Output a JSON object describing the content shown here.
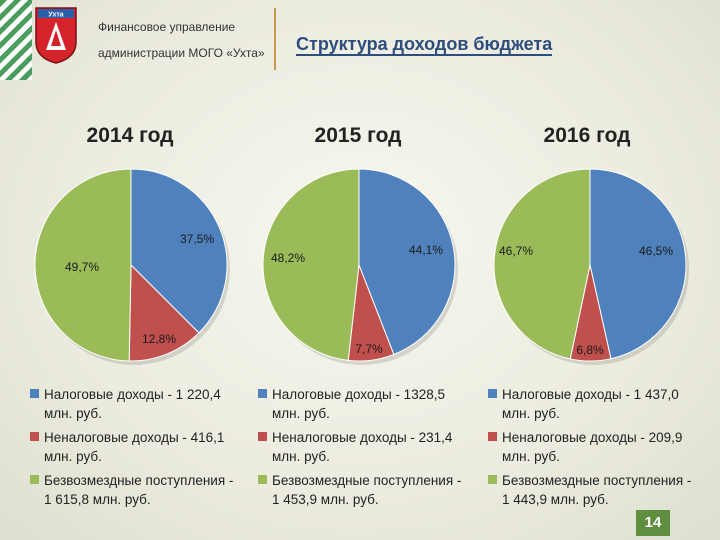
{
  "header": {
    "org_line1": "Финансовое управление",
    "org_line2": "администрации МОГО «Ухта»",
    "emblem_text": "Ухта",
    "title": "Структура доходов бюджета"
  },
  "colors": {
    "tax": "#4f81bd",
    "nontax": "#c0504d",
    "grants": "#9bbb59"
  },
  "chart_data": [
    {
      "type": "pie",
      "title": "2014 год",
      "slices": [
        {
          "label": "Налоговые доходы",
          "value": 37.5,
          "text": "37,5%",
          "color": "#4f81bd"
        },
        {
          "label": "Неналоговые доходы",
          "value": 12.8,
          "text": "12,8%",
          "color": "#c0504d"
        },
        {
          "label": "Безвозмездные поступления",
          "value": 49.7,
          "text": "49,7%",
          "color": "#9bbb59"
        }
      ],
      "legend": [
        "Налоговые доходы - 1 220,4 млн. руб.",
        "Неналоговые доходы - 416,1 млн. руб.",
        "Безвозмездные поступления - 1 615,8 млн. руб."
      ]
    },
    {
      "type": "pie",
      "title": "2015 год",
      "slices": [
        {
          "label": "Налоговые доходы",
          "value": 44.1,
          "text": "44,1%",
          "color": "#4f81bd"
        },
        {
          "label": "Неналоговые доходы",
          "value": 7.7,
          "text": "7,7%",
          "color": "#c0504d"
        },
        {
          "label": "Безвозмездные поступления",
          "value": 48.2,
          "text": "48,2%",
          "color": "#9bbb59"
        }
      ],
      "legend": [
        "Налоговые доходы - 1328,5 млн. руб.",
        "Неналоговые доходы - 231,4 млн. руб.",
        "Безвозмездные поступления - 1 453,9 млн. руб."
      ]
    },
    {
      "type": "pie",
      "title": "2016 год",
      "slices": [
        {
          "label": "Налоговые доходы",
          "value": 46.5,
          "text": "46,5%",
          "color": "#4f81bd"
        },
        {
          "label": "Неналоговые доходы",
          "value": 6.8,
          "text": "6,8%",
          "color": "#c0504d"
        },
        {
          "label": "Безвозмездные поступления",
          "value": 46.7,
          "text": "46,7%",
          "color": "#9bbb59"
        }
      ],
      "legend": [
        "Налоговые доходы - 1 437,0 млн. руб.",
        "Неналоговые доходы - 209,9 млн. руб.",
        "Безвозмездные поступления - 1 443,9 млн. руб."
      ]
    }
  ],
  "page_number": "14"
}
